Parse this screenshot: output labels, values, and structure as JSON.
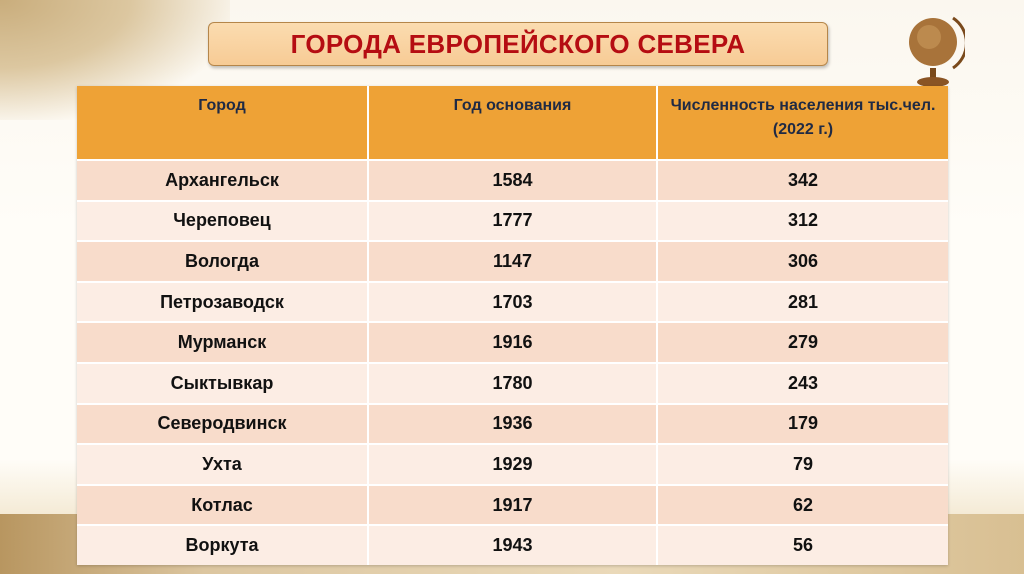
{
  "title": "ГОРОДА ЕВРОПЕЙСКОГО СЕВЕРА",
  "table": {
    "headers": [
      "Город",
      "Год основания",
      "Численность населения тыс.чел. (2022 г.)"
    ],
    "rows": [
      [
        "Архангельск",
        "1584",
        "342"
      ],
      [
        "Череповец",
        "1777",
        "312"
      ],
      [
        "Вологда",
        "1147",
        "306"
      ],
      [
        "Петрозаводск",
        "1703",
        "281"
      ],
      [
        "Мурманск",
        "1916",
        "279"
      ],
      [
        "Сыктывкар",
        "1780",
        "243"
      ],
      [
        "Северодвинск",
        "1936",
        "179"
      ],
      [
        "Ухта",
        "1929",
        "79"
      ],
      [
        "Котлас",
        "1917",
        "62"
      ],
      [
        "Воркута",
        "1943",
        "56"
      ]
    ]
  },
  "colors": {
    "title": "#b50d12",
    "header_bg": "#eea236",
    "row_odd": "#f8dccb",
    "row_even": "#fcede4"
  }
}
